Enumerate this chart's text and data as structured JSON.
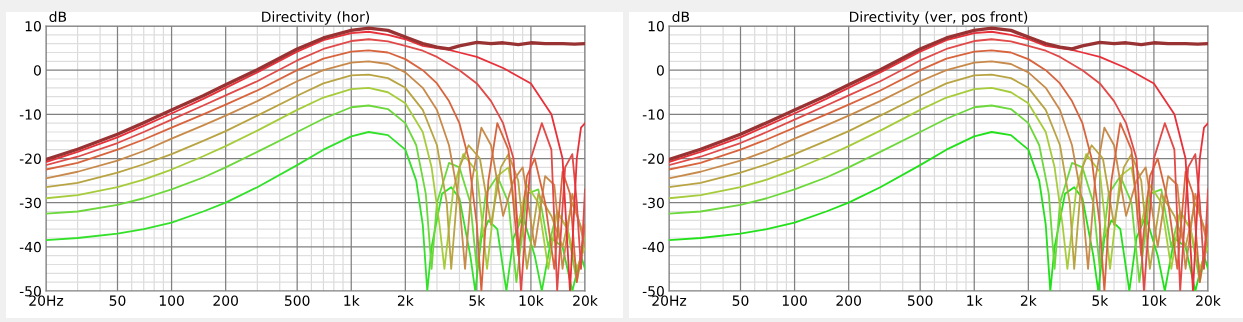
{
  "chart_data": [
    {
      "type": "line",
      "title": "Directivity (hor)",
      "ylabel": "dB",
      "log": "x",
      "grid": true,
      "marker": "none",
      "line_style": "solid",
      "xlim": [
        20,
        20000
      ],
      "xticks": [
        {
          "value": 20,
          "label": "20Hz"
        },
        50,
        100,
        200,
        500,
        {
          "value": 1000,
          "label": "1k"
        },
        {
          "value": 2000,
          "label": "2k"
        },
        {
          "value": 5000,
          "label": "5k"
        },
        {
          "value": 10000,
          "label": "10k"
        },
        {
          "value": 20000,
          "label": "20k"
        }
      ],
      "ylim": [
        -50,
        10
      ],
      "yticks": [
        -50,
        -40,
        -30,
        -20,
        -10,
        0,
        10
      ],
      "series": [
        {
          "color": "#993333",
          "x": [
            20,
            30,
            50,
            70,
            100,
            150,
            200,
            300,
            500,
            700,
            1000,
            1250,
            1600,
            2000,
            2500,
            3000,
            3500,
            4000,
            5000,
            6000,
            7000,
            8500,
            10000,
            12000,
            15000,
            17500,
            20000
          ],
          "values": [
            -20.2,
            -17.9,
            -14.5,
            -11.9,
            -9,
            -5.8,
            -3.3,
            0.1,
            4.8,
            7.3,
            9,
            9.5,
            9,
            7.5,
            6,
            5.2,
            4.8,
            5.5,
            6.3,
            6,
            6.2,
            5.8,
            6.2,
            6,
            6,
            5.9,
            6
          ]
        },
        {
          "color": "#e8303a",
          "x": [
            20,
            30,
            50,
            70,
            100,
            150,
            200,
            300,
            500,
            700,
            1000,
            1250,
            1600,
            2000,
            2500,
            3000,
            3500,
            4000,
            5000,
            7000,
            10000,
            13000,
            15000,
            16500,
            18000,
            19000,
            20000
          ],
          "values": [
            -20.8,
            -18.5,
            -15.2,
            -12.6,
            -9.8,
            -6.5,
            -4,
            -0.5,
            4.2,
            6.8,
            8.4,
            8.7,
            8,
            7,
            5.5,
            5,
            4.6,
            4,
            3,
            0.5,
            -3,
            -10,
            -20,
            -50,
            -20,
            -13,
            -12
          ]
        },
        {
          "color": "#e04a48",
          "x": [
            20,
            30,
            50,
            70,
            100,
            150,
            200,
            300,
            500,
            700,
            1000,
            1250,
            1600,
            2000,
            2500,
            3000,
            4000,
            5000,
            6000,
            7000,
            8000,
            8800,
            10000,
            11500,
            13000,
            14000,
            15500,
            17000,
            18000,
            19000,
            20000
          ],
          "values": [
            -21.5,
            -19.6,
            -16.5,
            -14,
            -11.2,
            -8,
            -5.7,
            -2.5,
            2.2,
            4.8,
            6.6,
            7,
            6.5,
            5.5,
            4.4,
            3,
            0,
            -3,
            -7,
            -12,
            -20,
            -50,
            -20,
            -12,
            -18,
            -50,
            -22,
            -19,
            -30,
            -45,
            -27
          ]
        },
        {
          "color": "#d8643e",
          "x": [
            20,
            30,
            50,
            70,
            100,
            150,
            200,
            300,
            500,
            700,
            1000,
            1250,
            1600,
            2000,
            2500,
            3000,
            3500,
            4000,
            4500,
            5000,
            5300,
            5800,
            6500,
            7500,
            8500,
            9500,
            10500,
            12000,
            13500,
            15000,
            16500,
            18000,
            20000
          ],
          "values": [
            -22.5,
            -21,
            -18,
            -15.7,
            -13,
            -10,
            -7.8,
            -4.6,
            0,
            2.6,
            4.2,
            4.5,
            4,
            2.5,
            0,
            -3,
            -7,
            -12,
            -20,
            -35,
            -50,
            -25,
            -12,
            -18,
            -42,
            -24,
            -20,
            -30,
            -45,
            -23,
            -28,
            -48,
            -35
          ]
        },
        {
          "color": "#c88a4a",
          "x": [
            20,
            30,
            50,
            70,
            100,
            150,
            200,
            300,
            500,
            700,
            1000,
            1250,
            1600,
            2000,
            2500,
            3000,
            3500,
            4000,
            4300,
            4700,
            5300,
            6000,
            7000,
            8000,
            9000,
            10500,
            12000,
            13500,
            15000,
            17000,
            20000
          ],
          "values": [
            -24.5,
            -23,
            -20.5,
            -18.3,
            -15.5,
            -12.5,
            -10.3,
            -7,
            -2.5,
            0,
            1.7,
            2,
            1.4,
            -0.5,
            -4,
            -9,
            -17,
            -30,
            -45,
            -25,
            -13,
            -17,
            -33,
            -25,
            -22,
            -40,
            -24,
            -26,
            -45,
            -28,
            -40
          ]
        },
        {
          "color": "#b8a442",
          "x": [
            20,
            30,
            50,
            70,
            100,
            150,
            200,
            300,
            500,
            700,
            1000,
            1250,
            1600,
            2000,
            2500,
            3000,
            3400,
            3600,
            4000,
            4500,
            5200,
            6000,
            6800,
            7500,
            8500,
            9500,
            11000,
            13000,
            15000,
            17000,
            20000
          ],
          "values": [
            -26.5,
            -25.5,
            -23.2,
            -21.3,
            -19,
            -16,
            -13.8,
            -10.3,
            -5.8,
            -3,
            -1.2,
            -1,
            -1.8,
            -4,
            -9,
            -17,
            -30,
            -45,
            -22,
            -17,
            -20,
            -35,
            -22,
            -19,
            -25,
            -45,
            -28,
            -33,
            -40,
            -30,
            -38
          ]
        },
        {
          "color": "#a6cc3c",
          "x": [
            20,
            30,
            50,
            70,
            100,
            150,
            200,
            300,
            500,
            700,
            1000,
            1250,
            1600,
            2000,
            2500,
            2800,
            3100,
            3300,
            3700,
            4200,
            5000,
            5700,
            6500,
            7500,
            8500,
            9500,
            11000,
            12500,
            14000,
            16000,
            18000,
            20000
          ],
          "values": [
            -29,
            -28.3,
            -26.5,
            -24.8,
            -22.5,
            -19.5,
            -17.2,
            -13.7,
            -9,
            -6.2,
            -4.3,
            -4,
            -5,
            -7.5,
            -14,
            -22,
            -35,
            -45,
            -27,
            -19,
            -23,
            -45,
            -24,
            -22,
            -35,
            -26,
            -30,
            -45,
            -32,
            -36,
            -45,
            -40
          ]
        },
        {
          "color": "#6cd83c",
          "x": [
            20,
            30,
            50,
            70,
            100,
            150,
            200,
            300,
            500,
            700,
            1000,
            1250,
            1600,
            2000,
            2300,
            2600,
            2800,
            3000,
            3500,
            4000,
            4600,
            5000,
            5600,
            6500,
            7500,
            8300,
            9500,
            11000,
            12500,
            14000,
            16000,
            18000,
            20000
          ],
          "values": [
            -32.5,
            -32,
            -30.5,
            -29,
            -27,
            -24.3,
            -22,
            -18.5,
            -14,
            -11,
            -8.4,
            -8,
            -8.8,
            -12,
            -17,
            -28,
            -45,
            -30,
            -21,
            -22,
            -30,
            -45,
            -28,
            -24,
            -30,
            -48,
            -28,
            -27,
            -40,
            -32,
            -36,
            -48,
            -38
          ]
        },
        {
          "color": "#33e02a",
          "x": [
            20,
            30,
            50,
            70,
            100,
            150,
            200,
            300,
            500,
            700,
            1000,
            1250,
            1600,
            2000,
            2300,
            2500,
            2650,
            2800,
            3200,
            3600,
            4000,
            4600,
            4900,
            5300,
            5800,
            6500,
            7300,
            8000,
            9000,
            10500,
            11500,
            13000,
            15000,
            17000,
            19000,
            20000
          ],
          "values": [
            -38.5,
            -38,
            -37,
            -36,
            -34.5,
            -32,
            -30,
            -26.5,
            -21.5,
            -18,
            -15,
            -14,
            -14.7,
            -18,
            -25,
            -35,
            -50,
            -40,
            -28,
            -26.5,
            -29,
            -42,
            -50,
            -38,
            -34,
            -36,
            -50,
            -38,
            -33,
            -42,
            -50,
            -38,
            -40,
            -50,
            -42,
            -45
          ]
        }
      ]
    },
    {
      "type": "line",
      "title": "Directivity (ver, pos front)",
      "ylabel": "dB",
      "log": "x",
      "grid": true,
      "marker": "none",
      "line_style": "solid",
      "xlim": [
        20,
        20000
      ],
      "xticks": [
        {
          "value": 20,
          "label": "20Hz"
        },
        50,
        100,
        200,
        500,
        {
          "value": 1000,
          "label": "1k"
        },
        {
          "value": 2000,
          "label": "2k"
        },
        {
          "value": 5000,
          "label": "5k"
        },
        {
          "value": 10000,
          "label": "10k"
        },
        {
          "value": 20000,
          "label": "20k"
        }
      ],
      "ylim": [
        -50,
        10
      ],
      "yticks": [
        -50,
        -40,
        -30,
        -20,
        -10,
        0,
        10
      ],
      "series": [
        {
          "color": "#993333",
          "x": [
            20,
            30,
            50,
            70,
            100,
            150,
            200,
            300,
            500,
            700,
            1000,
            1250,
            1600,
            2000,
            2500,
            3000,
            3500,
            4000,
            5000,
            6000,
            7000,
            8500,
            10000,
            12000,
            15000,
            17500,
            20000
          ],
          "values": [
            -20.2,
            -17.9,
            -14.5,
            -11.9,
            -9,
            -5.8,
            -3.3,
            0.1,
            4.8,
            7.3,
            9,
            9.5,
            9,
            7.5,
            6,
            5.2,
            4.8,
            5.5,
            6.3,
            6,
            6.2,
            5.8,
            6.2,
            6,
            6,
            5.9,
            6
          ]
        },
        {
          "color": "#e8303a",
          "x": [
            20,
            30,
            50,
            70,
            100,
            150,
            200,
            300,
            500,
            700,
            1000,
            1250,
            1600,
            2000,
            2500,
            3000,
            3500,
            4000,
            5000,
            7000,
            10000,
            13000,
            15000,
            16500,
            18000,
            19000,
            20000
          ],
          "values": [
            -20.8,
            -18.5,
            -15.2,
            -12.6,
            -9.8,
            -6.5,
            -4,
            -0.5,
            4.2,
            6.8,
            8.4,
            8.7,
            8,
            7,
            5.5,
            5,
            4.6,
            4,
            3,
            0.5,
            -3,
            -10,
            -20,
            -50,
            -20,
            -13,
            -12
          ]
        },
        {
          "color": "#e04a48",
          "x": [
            20,
            30,
            50,
            70,
            100,
            150,
            200,
            300,
            500,
            700,
            1000,
            1250,
            1600,
            2000,
            2500,
            3000,
            4000,
            5000,
            6000,
            7000,
            8000,
            8800,
            10000,
            11500,
            13000,
            14000,
            15500,
            17000,
            18000,
            19000,
            20000
          ],
          "values": [
            -21.5,
            -19.6,
            -16.5,
            -14,
            -11.2,
            -8,
            -5.7,
            -2.5,
            2.2,
            4.8,
            6.6,
            7,
            6.5,
            5.5,
            4.4,
            3,
            0,
            -3,
            -7,
            -12,
            -20,
            -50,
            -20,
            -12,
            -18,
            -50,
            -22,
            -19,
            -30,
            -45,
            -27
          ]
        },
        {
          "color": "#d8643e",
          "x": [
            20,
            30,
            50,
            70,
            100,
            150,
            200,
            300,
            500,
            700,
            1000,
            1250,
            1600,
            2000,
            2500,
            3000,
            3500,
            4000,
            4500,
            5000,
            5300,
            5800,
            6500,
            7500,
            8500,
            9500,
            10500,
            12000,
            13500,
            15000,
            16500,
            18000,
            20000
          ],
          "values": [
            -22.5,
            -21,
            -18,
            -15.7,
            -13,
            -10,
            -7.8,
            -4.6,
            0,
            2.6,
            4.2,
            4.5,
            4,
            2.5,
            0,
            -3,
            -7,
            -12,
            -20,
            -35,
            -50,
            -25,
            -12,
            -18,
            -42,
            -24,
            -20,
            -30,
            -45,
            -23,
            -28,
            -48,
            -35
          ]
        },
        {
          "color": "#c88a4a",
          "x": [
            20,
            30,
            50,
            70,
            100,
            150,
            200,
            300,
            500,
            700,
            1000,
            1250,
            1600,
            2000,
            2500,
            3000,
            3500,
            4000,
            4300,
            4700,
            5300,
            6000,
            7000,
            8000,
            9000,
            10500,
            12000,
            13500,
            15000,
            17000,
            20000
          ],
          "values": [
            -24.5,
            -23,
            -20.5,
            -18.3,
            -15.5,
            -12.5,
            -10.3,
            -7,
            -2.5,
            0,
            1.7,
            2,
            1.4,
            -0.5,
            -4,
            -9,
            -17,
            -30,
            -45,
            -25,
            -13,
            -17,
            -33,
            -25,
            -22,
            -40,
            -24,
            -26,
            -45,
            -28,
            -40
          ]
        },
        {
          "color": "#b8a442",
          "x": [
            20,
            30,
            50,
            70,
            100,
            150,
            200,
            300,
            500,
            700,
            1000,
            1250,
            1600,
            2000,
            2500,
            3000,
            3400,
            3600,
            4000,
            4500,
            5200,
            6000,
            6800,
            7500,
            8500,
            9500,
            11000,
            13000,
            15000,
            17000,
            20000
          ],
          "values": [
            -26.5,
            -25.5,
            -23.2,
            -21.3,
            -19,
            -16,
            -13.8,
            -10.3,
            -5.8,
            -3,
            -1.2,
            -1,
            -1.8,
            -4,
            -9,
            -17,
            -30,
            -45,
            -22,
            -17,
            -20,
            -35,
            -22,
            -19,
            -25,
            -45,
            -28,
            -33,
            -40,
            -30,
            -38
          ]
        },
        {
          "color": "#a6cc3c",
          "x": [
            20,
            30,
            50,
            70,
            100,
            150,
            200,
            300,
            500,
            700,
            1000,
            1250,
            1600,
            2000,
            2500,
            2800,
            3100,
            3300,
            3700,
            4200,
            5000,
            5700,
            6500,
            7500,
            8500,
            9500,
            11000,
            12500,
            14000,
            16000,
            18000,
            20000
          ],
          "values": [
            -29,
            -28.3,
            -26.5,
            -24.8,
            -22.5,
            -19.5,
            -17.2,
            -13.7,
            -9,
            -6.2,
            -4.3,
            -4,
            -5,
            -7.5,
            -14,
            -22,
            -35,
            -45,
            -27,
            -19,
            -23,
            -45,
            -24,
            -22,
            -35,
            -26,
            -30,
            -45,
            -32,
            -36,
            -45,
            -40
          ]
        },
        {
          "color": "#6cd83c",
          "x": [
            20,
            30,
            50,
            70,
            100,
            150,
            200,
            300,
            500,
            700,
            1000,
            1250,
            1600,
            2000,
            2300,
            2600,
            2800,
            3000,
            3500,
            4000,
            4600,
            5000,
            5600,
            6500,
            7500,
            8300,
            9500,
            11000,
            12500,
            14000,
            16000,
            18000,
            20000
          ],
          "values": [
            -32.5,
            -32,
            -30.5,
            -29,
            -27,
            -24.3,
            -22,
            -18.5,
            -14,
            -11,
            -8.4,
            -8,
            -8.8,
            -12,
            -17,
            -28,
            -45,
            -30,
            -21,
            -22,
            -30,
            -45,
            -28,
            -24,
            -30,
            -48,
            -28,
            -27,
            -40,
            -32,
            -36,
            -48,
            -38
          ]
        },
        {
          "color": "#22e01a",
          "x": [
            20,
            30,
            50,
            70,
            100,
            150,
            200,
            300,
            500,
            700,
            1000,
            1250,
            1600,
            2000,
            2300,
            2500,
            2650,
            2800,
            3200,
            3600,
            4000,
            4600,
            4900,
            5300,
            5800,
            6500,
            7300,
            8000,
            9000,
            10500,
            11500,
            13000,
            15000,
            17000,
            19000,
            20000
          ],
          "values": [
            -38.5,
            -38,
            -37,
            -36,
            -34.5,
            -32,
            -30,
            -26.5,
            -21.5,
            -18,
            -15,
            -14,
            -14.7,
            -18,
            -25,
            -35,
            -50,
            -40,
            -28,
            -26.5,
            -29,
            -42,
            -50,
            -38,
            -34,
            -36,
            -50,
            -38,
            -33,
            -42,
            -50,
            -38,
            -40,
            -50,
            -42,
            -45
          ]
        }
      ]
    }
  ]
}
